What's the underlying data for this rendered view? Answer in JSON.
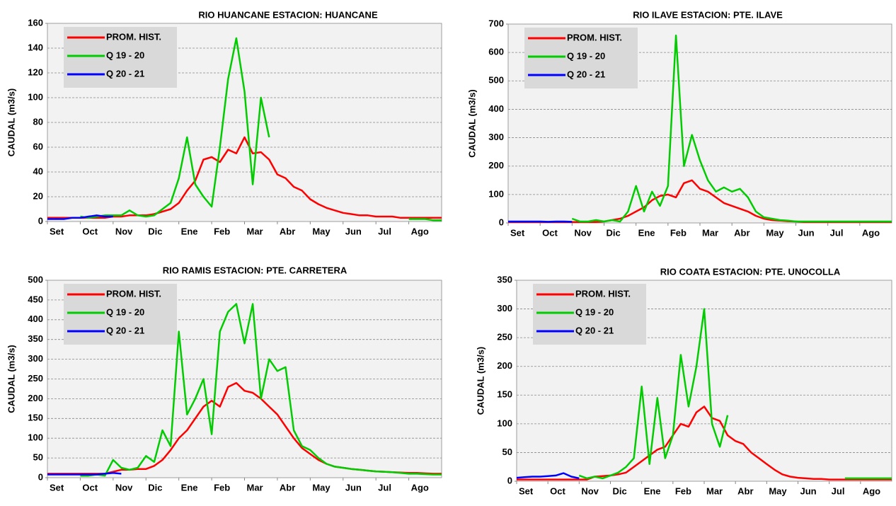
{
  "chart_data": [
    {
      "type": "line",
      "title": "RIO HUANCANE ESTACION: HUANCANE",
      "y_label": "CAUDAL (m3/s)",
      "x": [
        0,
        0.25,
        0.5,
        0.75,
        1,
        1.25,
        1.5,
        1.75,
        2,
        2.25,
        2.5,
        2.75,
        3,
        3.25,
        3.5,
        3.75,
        4,
        4.25,
        4.5,
        4.75,
        5,
        5.25,
        5.5,
        5.75,
        6,
        6.25,
        6.5,
        6.75,
        7,
        7.25,
        7.5,
        7.75,
        8,
        8.25,
        8.5,
        8.75,
        9,
        9.25,
        9.5,
        9.75,
        10,
        10.25,
        10.5,
        10.75,
        11,
        11.25,
        11.5,
        11.75,
        12
      ],
      "xlim": [
        0,
        12
      ],
      "xticks": [
        {
          "value": 0,
          "label": "Set"
        },
        {
          "value": 1,
          "label": "Oct"
        },
        {
          "value": 2,
          "label": "Nov"
        },
        {
          "value": 3,
          "label": "Dic"
        },
        {
          "value": 4,
          "label": "Ene"
        },
        {
          "value": 5,
          "label": "Feb"
        },
        {
          "value": 6,
          "label": "Mar"
        },
        {
          "value": 7,
          "label": "Abr"
        },
        {
          "value": 8,
          "label": "May"
        },
        {
          "value": 9,
          "label": "Jun"
        },
        {
          "value": 10,
          "label": "Jul"
        },
        {
          "value": 11,
          "label": "Ago"
        }
      ],
      "ylim": [
        0,
        160
      ],
      "yticks": [
        0,
        20,
        40,
        60,
        80,
        100,
        120,
        140,
        160
      ],
      "grid": true,
      "series": [
        {
          "name": "PROM. HIST.",
          "color": "#ff0000",
          "values": [
            3,
            3,
            3,
            3,
            3,
            3,
            3,
            3,
            4,
            4,
            5,
            5,
            5,
            6,
            8,
            10,
            15,
            25,
            33,
            50,
            52,
            48,
            58,
            55,
            68,
            55,
            56,
            50,
            38,
            35,
            28,
            25,
            18,
            14,
            11,
            9,
            7,
            6,
            5,
            5,
            4,
            4,
            4,
            3,
            3,
            3,
            3,
            3,
            3
          ]
        },
        {
          "name": "Q 19 - 20",
          "color": "#00cc00",
          "values": [
            null,
            null,
            null,
            null,
            4,
            3,
            4,
            5,
            5,
            5,
            9,
            5,
            4,
            5,
            10,
            15,
            35,
            68,
            30,
            20,
            12,
            60,
            115,
            148,
            105,
            30,
            100,
            68,
            null,
            null,
            null,
            null,
            null,
            null,
            null,
            null,
            null,
            null,
            null,
            null,
            null,
            null,
            null,
            null,
            2,
            2,
            2,
            1,
            1
          ]
        },
        {
          "name": "Q 20 - 21",
          "color": "#0000ff",
          "values": [
            2,
            2,
            2,
            3,
            3,
            4,
            5,
            4,
            4,
            null,
            null,
            null,
            null,
            null,
            null,
            null,
            null,
            null,
            null,
            null,
            null,
            null,
            null,
            null,
            null,
            null,
            null,
            null,
            null,
            null,
            null,
            null,
            null,
            null,
            null,
            null,
            null,
            null,
            null,
            null,
            null,
            null,
            null,
            null,
            null,
            null,
            null,
            null,
            null
          ]
        }
      ]
    },
    {
      "type": "line",
      "title": "RIO ILAVE ESTACION: PTE. ILAVE",
      "y_label": "CAUDAL (m3/s)",
      "x": [
        0,
        0.25,
        0.5,
        0.75,
        1,
        1.25,
        1.5,
        1.75,
        2,
        2.25,
        2.5,
        2.75,
        3,
        3.25,
        3.5,
        3.75,
        4,
        4.25,
        4.5,
        4.75,
        5,
        5.25,
        5.5,
        5.75,
        6,
        6.25,
        6.5,
        6.75,
        7,
        7.25,
        7.5,
        7.75,
        8,
        8.25,
        8.5,
        8.75,
        9,
        9.25,
        9.5,
        9.75,
        10,
        10.25,
        10.5,
        10.75,
        11,
        11.25,
        11.5,
        11.75,
        12
      ],
      "xlim": [
        0,
        12
      ],
      "xticks": [
        {
          "value": 0,
          "label": "Set"
        },
        {
          "value": 1,
          "label": "Oct"
        },
        {
          "value": 2,
          "label": "Nov"
        },
        {
          "value": 3,
          "label": "Dic"
        },
        {
          "value": 4,
          "label": "Ene"
        },
        {
          "value": 5,
          "label": "Feb"
        },
        {
          "value": 6,
          "label": "Mar"
        },
        {
          "value": 7,
          "label": "Abr"
        },
        {
          "value": 8,
          "label": "May"
        },
        {
          "value": 9,
          "label": "Jun"
        },
        {
          "value": 10,
          "label": "Jul"
        },
        {
          "value": 11,
          "label": "Ago"
        }
      ],
      "ylim": [
        0,
        700
      ],
      "yticks": [
        0,
        100,
        200,
        300,
        400,
        500,
        600,
        700
      ],
      "grid": true,
      "series": [
        {
          "name": "PROM. HIST.",
          "color": "#ff0000",
          "values": [
            3,
            3,
            3,
            3,
            3,
            3,
            3,
            3,
            3,
            3,
            3,
            3,
            5,
            10,
            15,
            25,
            40,
            55,
            80,
            95,
            100,
            90,
            140,
            150,
            120,
            110,
            90,
            70,
            60,
            50,
            40,
            25,
            15,
            10,
            8,
            6,
            5,
            3,
            3,
            3,
            3,
            3,
            3,
            3,
            3,
            3,
            3,
            3,
            3
          ]
        },
        {
          "name": "Q 19 - 20",
          "color": "#00cc00",
          "values": [
            null,
            null,
            null,
            null,
            null,
            null,
            null,
            null,
            15,
            5,
            5,
            10,
            5,
            10,
            5,
            40,
            130,
            40,
            110,
            60,
            130,
            660,
            200,
            310,
            220,
            150,
            110,
            125,
            110,
            120,
            90,
            40,
            20,
            15,
            10,
            8,
            5,
            5,
            5,
            5,
            5,
            5,
            5,
            5,
            5,
            5,
            5,
            5,
            5
          ]
        },
        {
          "name": "Q 20 - 21",
          "color": "#0000ff",
          "values": [
            5,
            5,
            5,
            5,
            5,
            4,
            5,
            5,
            4,
            null,
            null,
            null,
            null,
            null,
            null,
            null,
            null,
            null,
            null,
            null,
            null,
            null,
            null,
            null,
            null,
            null,
            null,
            null,
            null,
            null,
            null,
            null,
            null,
            null,
            null,
            null,
            null,
            null,
            null,
            null,
            null,
            null,
            null,
            null,
            null,
            null,
            null,
            null,
            null
          ]
        }
      ]
    },
    {
      "type": "line",
      "title": "RIO RAMIS ESTACION: PTE. CARRETERA",
      "y_label": "CAUDAL (m3/s)",
      "x": [
        0,
        0.25,
        0.5,
        0.75,
        1,
        1.25,
        1.5,
        1.75,
        2,
        2.25,
        2.5,
        2.75,
        3,
        3.25,
        3.5,
        3.75,
        4,
        4.25,
        4.5,
        4.75,
        5,
        5.25,
        5.5,
        5.75,
        6,
        6.25,
        6.5,
        6.75,
        7,
        7.25,
        7.5,
        7.75,
        8,
        8.25,
        8.5,
        8.75,
        9,
        9.25,
        9.5,
        9.75,
        10,
        10.25,
        10.5,
        10.75,
        11,
        11.25,
        11.5,
        11.75,
        12
      ],
      "xlim": [
        0,
        12
      ],
      "xticks": [
        {
          "value": 0,
          "label": "Set"
        },
        {
          "value": 1,
          "label": "Oct"
        },
        {
          "value": 2,
          "label": "Nov"
        },
        {
          "value": 3,
          "label": "Dic"
        },
        {
          "value": 4,
          "label": "Ene"
        },
        {
          "value": 5,
          "label": "Feb"
        },
        {
          "value": 6,
          "label": "Mar"
        },
        {
          "value": 7,
          "label": "Abr"
        },
        {
          "value": 8,
          "label": "May"
        },
        {
          "value": 9,
          "label": "Jun"
        },
        {
          "value": 10,
          "label": "Jul"
        },
        {
          "value": 11,
          "label": "Ago"
        }
      ],
      "ylim": [
        0,
        500
      ],
      "yticks": [
        0,
        50,
        100,
        150,
        200,
        250,
        300,
        350,
        400,
        450,
        500
      ],
      "grid": true,
      "series": [
        {
          "name": "PROM. HIST.",
          "color": "#ff0000",
          "values": [
            10,
            10,
            10,
            10,
            10,
            10,
            10,
            10,
            15,
            20,
            20,
            22,
            22,
            30,
            45,
            70,
            100,
            120,
            150,
            180,
            195,
            180,
            230,
            240,
            220,
            215,
            200,
            180,
            160,
            130,
            100,
            75,
            60,
            45,
            35,
            28,
            25,
            22,
            20,
            18,
            16,
            15,
            14,
            13,
            12,
            12,
            11,
            10,
            10
          ]
        },
        {
          "name": "Q 19 - 20",
          "color": "#00cc00",
          "values": [
            null,
            null,
            null,
            null,
            5,
            5,
            8,
            5,
            45,
            25,
            20,
            25,
            55,
            40,
            120,
            80,
            370,
            160,
            200,
            250,
            110,
            370,
            420,
            440,
            340,
            440,
            200,
            300,
            270,
            280,
            120,
            80,
            70,
            50,
            35,
            28,
            25,
            22,
            20,
            18,
            16,
            15,
            14,
            12,
            10,
            10,
            9,
            8,
            8
          ]
        },
        {
          "name": "Q 20 - 21",
          "color": "#0000ff",
          "values": [
            8,
            8,
            8,
            8,
            8,
            8,
            8,
            10,
            12,
            10,
            null,
            null,
            null,
            null,
            null,
            null,
            null,
            null,
            null,
            null,
            null,
            null,
            null,
            null,
            null,
            null,
            null,
            null,
            null,
            null,
            null,
            null,
            null,
            null,
            null,
            null,
            null,
            null,
            null,
            null,
            null,
            null,
            null,
            null,
            null,
            null,
            null,
            null,
            null
          ]
        }
      ]
    },
    {
      "type": "line",
      "title": "RIO COATA ESTACION: PTE. UNOCOLLA",
      "y_label": "CAUDAL (m3/s)",
      "x": [
        0,
        0.25,
        0.5,
        0.75,
        1,
        1.25,
        1.5,
        1.75,
        2,
        2.25,
        2.5,
        2.75,
        3,
        3.25,
        3.5,
        3.75,
        4,
        4.25,
        4.5,
        4.75,
        5,
        5.25,
        5.5,
        5.75,
        6,
        6.25,
        6.5,
        6.75,
        7,
        7.25,
        7.5,
        7.75,
        8,
        8.25,
        8.5,
        8.75,
        9,
        9.25,
        9.5,
        9.75,
        10,
        10.25,
        10.5,
        10.75,
        11,
        11.25,
        11.5,
        11.75,
        12
      ],
      "xlim": [
        0,
        12
      ],
      "xticks": [
        {
          "value": 0,
          "label": "Set"
        },
        {
          "value": 1,
          "label": "Oct"
        },
        {
          "value": 2,
          "label": "Nov"
        },
        {
          "value": 3,
          "label": "Dic"
        },
        {
          "value": 4,
          "label": "Ene"
        },
        {
          "value": 5,
          "label": "Feb"
        },
        {
          "value": 6,
          "label": "Mar"
        },
        {
          "value": 7,
          "label": "Abr"
        },
        {
          "value": 8,
          "label": "May"
        },
        {
          "value": 9,
          "label": "Jun"
        },
        {
          "value": 10,
          "label": "Jul"
        },
        {
          "value": 11,
          "label": "Ago"
        }
      ],
      "ylim": [
        0,
        350
      ],
      "yticks": [
        0,
        50,
        100,
        150,
        200,
        250,
        300,
        350
      ],
      "grid": true,
      "series": [
        {
          "name": "PROM. HIST.",
          "color": "#ff0000",
          "values": [
            3,
            3,
            3,
            3,
            3,
            3,
            3,
            3,
            3,
            3,
            8,
            9,
            10,
            12,
            15,
            25,
            35,
            45,
            55,
            60,
            80,
            100,
            95,
            120,
            130,
            110,
            105,
            80,
            70,
            65,
            50,
            40,
            30,
            20,
            12,
            8,
            6,
            5,
            4,
            4,
            3,
            3,
            3,
            3,
            3,
            3,
            3,
            3,
            3
          ]
        },
        {
          "name": "Q 19 - 20",
          "color": "#00cc00",
          "values": [
            null,
            null,
            null,
            null,
            null,
            null,
            null,
            null,
            10,
            5,
            8,
            5,
            10,
            15,
            25,
            40,
            165,
            30,
            145,
            40,
            80,
            220,
            130,
            200,
            300,
            100,
            60,
            115,
            null,
            null,
            null,
            null,
            null,
            null,
            null,
            null,
            null,
            null,
            null,
            null,
            null,
            null,
            5,
            5,
            5,
            5,
            5,
            5,
            5
          ]
        },
        {
          "name": "Q 20 - 21",
          "color": "#0000ff",
          "values": [
            6,
            7,
            8,
            8,
            9,
            10,
            14,
            8,
            5,
            null,
            null,
            null,
            null,
            null,
            null,
            null,
            null,
            null,
            null,
            null,
            null,
            null,
            null,
            null,
            null,
            null,
            null,
            null,
            null,
            null,
            null,
            null,
            null,
            null,
            null,
            null,
            null,
            null,
            null,
            null,
            null,
            null,
            null,
            null,
            null,
            null,
            null,
            null,
            null
          ]
        }
      ]
    }
  ]
}
